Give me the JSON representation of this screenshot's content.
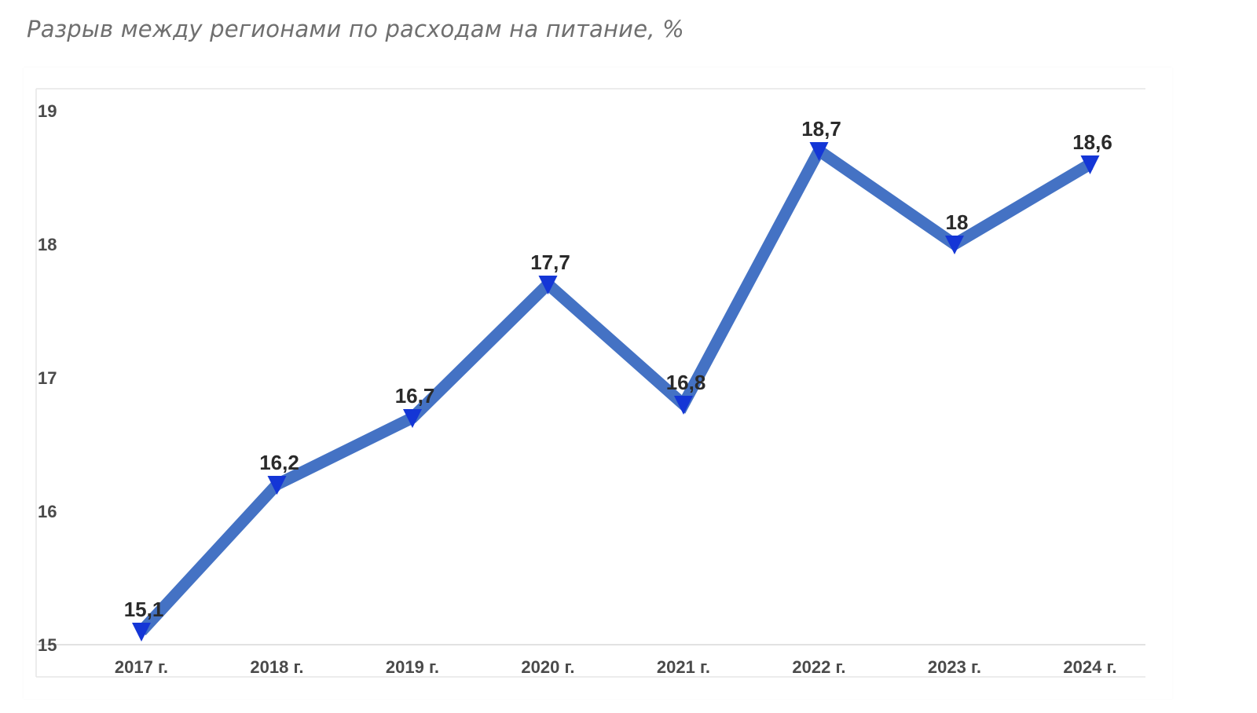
{
  "page": {
    "title": "Разрыв между регионами по расходам на питание, %"
  },
  "colors": {
    "line": "#4472c4",
    "marker": "#1436d6",
    "gridline": "#e6e6e6",
    "axis": "#d9d9d9"
  },
  "chart_data": {
    "type": "line",
    "title": "Разрыв между регионами по расходам на питание, %",
    "xlabel": "",
    "ylabel": "",
    "categories": [
      "2017 г.",
      "2018 г.",
      "2019 г.",
      "2020 г.",
      "2021 г.",
      "2022 г.",
      "2023 г.",
      "2024 г."
    ],
    "series": [
      {
        "values": [
          15.1,
          16.2,
          16.7,
          17.7,
          16.8,
          18.7,
          18,
          18.6
        ],
        "data_labels": [
          "15,1",
          "16,2",
          "16,7",
          "17,7",
          "16,8",
          "18,7",
          "18",
          "18,6"
        ],
        "marker": "triangle-down"
      }
    ],
    "ylim": [
      15,
      19
    ],
    "yticks": [
      "15",
      "16",
      "17",
      "18",
      "19"
    ],
    "grid": "horizontal",
    "legend": "none"
  }
}
